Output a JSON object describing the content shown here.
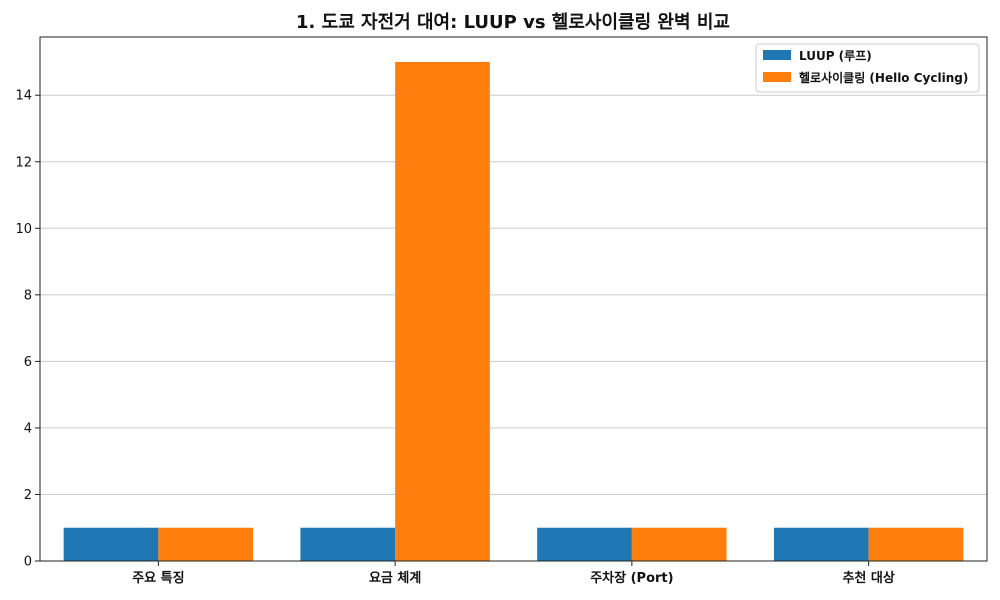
{
  "chart_data": {
    "type": "bar",
    "title": "1. 도쿄 자전거 대여: LUUP vs 헬로사이클링 완벽 비교",
    "xlabel": "",
    "ylabel": "",
    "categories": [
      "주요 특징",
      "요금 체계",
      "주차장 (Port)",
      "추천 대상"
    ],
    "series": [
      {
        "name": "LUUP (루프)",
        "color": "#1f77b4",
        "values": [
          1,
          1,
          1,
          1
        ]
      },
      {
        "name": "헬로사이클링 (Hello Cycling)",
        "color": "#ff7f0e",
        "values": [
          1,
          15,
          1,
          1
        ]
      }
    ],
    "ylim": [
      0,
      15.75
    ],
    "yticks": [
      0,
      2,
      4,
      6,
      8,
      10,
      12,
      14
    ],
    "grid": true,
    "legend_position": "top-right"
  }
}
